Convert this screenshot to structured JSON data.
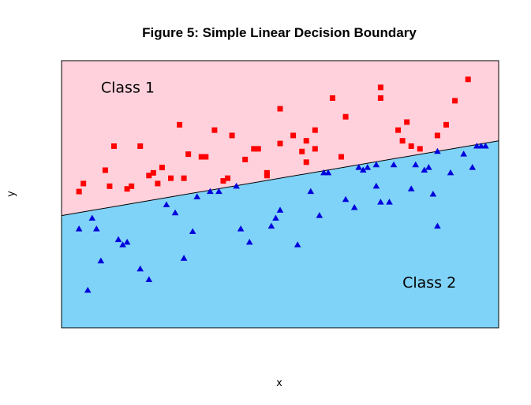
{
  "chart_data": {
    "type": "scatter",
    "title": "Figure 5: Simple Linear Decision Boundary",
    "xlabel": "x",
    "ylabel": "y",
    "xlim": [
      0,
      100
    ],
    "ylim": [
      0,
      100
    ],
    "axes_visible": false,
    "grid": false,
    "boundary": {
      "x": [
        0,
        100
      ],
      "y": [
        42,
        70
      ]
    },
    "region_colors": {
      "above": "#ffd1dc",
      "below": "#80d3f8"
    },
    "region_labels": [
      {
        "text": "Class 1",
        "x": 9,
        "y": 88
      },
      {
        "text": "Class 2",
        "x": 78,
        "y": 15
      }
    ],
    "series": [
      {
        "label": "Class 1",
        "marker": "square",
        "color": "#ff0000",
        "points": [
          [
            4,
            51
          ],
          [
            5,
            54
          ],
          [
            10,
            59
          ],
          [
            11,
            53
          ],
          [
            12,
            68
          ],
          [
            15,
            52
          ],
          [
            16,
            53
          ],
          [
            18,
            68
          ],
          [
            20,
            57
          ],
          [
            21,
            58
          ],
          [
            22,
            54
          ],
          [
            23,
            60
          ],
          [
            25,
            56
          ],
          [
            27,
            76
          ],
          [
            28,
            56
          ],
          [
            29,
            65
          ],
          [
            32,
            64
          ],
          [
            33,
            64
          ],
          [
            35,
            74
          ],
          [
            37,
            55
          ],
          [
            38,
            56
          ],
          [
            39,
            72
          ],
          [
            42,
            63
          ],
          [
            44,
            67
          ],
          [
            45,
            67
          ],
          [
            47,
            57
          ],
          [
            47,
            58
          ],
          [
            50,
            69
          ],
          [
            50,
            82
          ],
          [
            53,
            72
          ],
          [
            55,
            66
          ],
          [
            56,
            70
          ],
          [
            56,
            62
          ],
          [
            58,
            67
          ],
          [
            58,
            74
          ],
          [
            62,
            86
          ],
          [
            64,
            64
          ],
          [
            65,
            79
          ],
          [
            73,
            86
          ],
          [
            73,
            90
          ],
          [
            77,
            74
          ],
          [
            78,
            70
          ],
          [
            79,
            77
          ],
          [
            80,
            68
          ],
          [
            82,
            67
          ],
          [
            86,
            72
          ],
          [
            88,
            76
          ],
          [
            90,
            85
          ],
          [
            93,
            93
          ]
        ]
      },
      {
        "label": "Class 2",
        "marker": "triangle",
        "color": "#0000dd",
        "points": [
          [
            4,
            37
          ],
          [
            6,
            14
          ],
          [
            7,
            41
          ],
          [
            8,
            37
          ],
          [
            9,
            25
          ],
          [
            13,
            33
          ],
          [
            14,
            31
          ],
          [
            15,
            32
          ],
          [
            18,
            22
          ],
          [
            20,
            18
          ],
          [
            24,
            46
          ],
          [
            26,
            43
          ],
          [
            28,
            26
          ],
          [
            30,
            36
          ],
          [
            31,
            49
          ],
          [
            34,
            51
          ],
          [
            36,
            51
          ],
          [
            40,
            53
          ],
          [
            41,
            37
          ],
          [
            43,
            32
          ],
          [
            48,
            38
          ],
          [
            49,
            41
          ],
          [
            50,
            44
          ],
          [
            54,
            31
          ],
          [
            57,
            51
          ],
          [
            59,
            42
          ],
          [
            60,
            58
          ],
          [
            61,
            58
          ],
          [
            65,
            48
          ],
          [
            67,
            45
          ],
          [
            68,
            60
          ],
          [
            69,
            59
          ],
          [
            70,
            60
          ],
          [
            72,
            53
          ],
          [
            72,
            61
          ],
          [
            73,
            47
          ],
          [
            75,
            47
          ],
          [
            76,
            61
          ],
          [
            80,
            52
          ],
          [
            81,
            61
          ],
          [
            83,
            59
          ],
          [
            84,
            60
          ],
          [
            85,
            50
          ],
          [
            86,
            38
          ],
          [
            86,
            66
          ],
          [
            89,
            58
          ],
          [
            92,
            65
          ],
          [
            94,
            60
          ],
          [
            95,
            68
          ],
          [
            96,
            68
          ],
          [
            97,
            68
          ]
        ]
      }
    ]
  }
}
